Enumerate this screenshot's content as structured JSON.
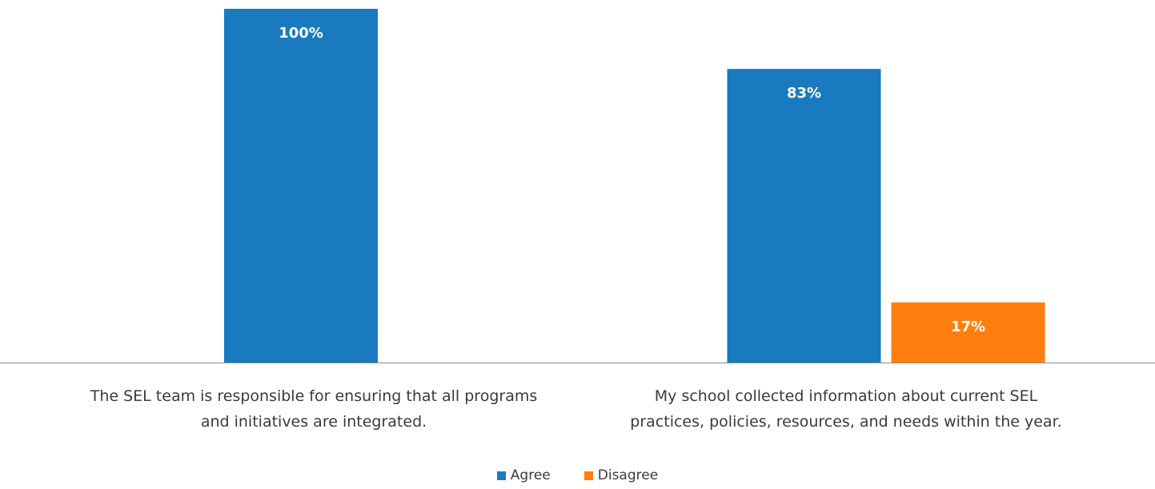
{
  "chart_data": {
    "type": "bar",
    "categories": [
      "The SEL team is responsible for ensuring that all programs and initiatives are integrated.",
      "My school collected information about current SEL practices, policies, resources, and needs within the year."
    ],
    "category_lines": [
      [
        "The SEL team is responsible for ensuring that all programs",
        "and initiatives are integrated."
      ],
      [
        "My school collected information about current SEL",
        "practices, policies, resources, and needs within the year."
      ]
    ],
    "series": [
      {
        "name": "Agree",
        "color": "#1a7abf",
        "values": [
          100,
          83
        ],
        "labels": [
          "100%",
          "83%"
        ]
      },
      {
        "name": "Disagree",
        "color": "#ff7f0e",
        "values": [
          null,
          17
        ],
        "labels": [
          "",
          "17%"
        ]
      }
    ],
    "ylim": [
      0,
      100
    ],
    "unit": "%",
    "grid": false,
    "legend_position": "bottom-center"
  }
}
